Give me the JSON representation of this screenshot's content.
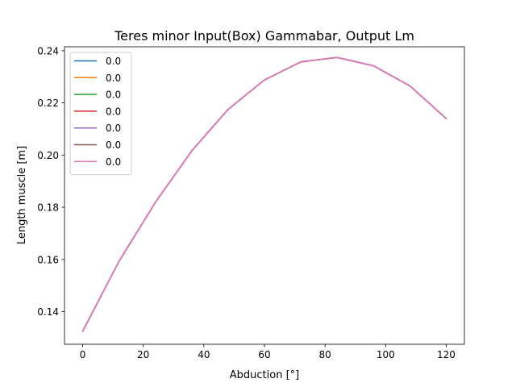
{
  "chart_data": {
    "type": "line",
    "title": "Teres minor Input(Box) Gammabar, Output Lm",
    "xlabel": "Abduction [°]",
    "ylabel": "Length muscle [m]",
    "xlim": [
      -6,
      126
    ],
    "ylim": [
      0.1275,
      0.2415
    ],
    "xticks": [
      0,
      20,
      40,
      60,
      80,
      100,
      120
    ],
    "yticks": [
      0.14,
      0.16,
      0.18,
      0.2,
      0.22,
      0.24
    ],
    "xtick_labels": [
      "0",
      "20",
      "40",
      "60",
      "80",
      "100",
      "120"
    ],
    "ytick_labels": [
      "0.14",
      "0.16",
      "0.18",
      "0.20",
      "0.22",
      "0.24"
    ],
    "grid": false,
    "legend_position": "upper-left",
    "x": [
      0,
      12,
      24,
      36,
      48,
      60,
      72,
      84,
      96,
      108,
      120
    ],
    "series": [
      {
        "name": "0.0",
        "color": "#1f77b4",
        "values": [
          0.1325,
          0.1593,
          0.1819,
          0.2016,
          0.2175,
          0.2288,
          0.2357,
          0.2374,
          0.2342,
          0.2265,
          0.214
        ]
      },
      {
        "name": "0.0",
        "color": "#ff7f0e",
        "values": [
          0.1325,
          0.1593,
          0.1819,
          0.2016,
          0.2175,
          0.2288,
          0.2357,
          0.2374,
          0.2342,
          0.2265,
          0.214
        ]
      },
      {
        "name": "0.0",
        "color": "#2ca02c",
        "values": [
          0.1325,
          0.1593,
          0.1819,
          0.2016,
          0.2175,
          0.2288,
          0.2357,
          0.2374,
          0.2342,
          0.2265,
          0.214
        ]
      },
      {
        "name": "0.0",
        "color": "#d62728",
        "values": [
          0.1325,
          0.1593,
          0.1819,
          0.2016,
          0.2175,
          0.2288,
          0.2357,
          0.2374,
          0.2342,
          0.2265,
          0.214
        ]
      },
      {
        "name": "0.0",
        "color": "#9467bd",
        "values": [
          0.1325,
          0.1593,
          0.1819,
          0.2016,
          0.2175,
          0.2288,
          0.2357,
          0.2374,
          0.2342,
          0.2265,
          0.214
        ]
      },
      {
        "name": "0.0",
        "color": "#8c564b",
        "values": [
          0.1325,
          0.1593,
          0.1819,
          0.2016,
          0.2175,
          0.2288,
          0.2357,
          0.2374,
          0.2342,
          0.2265,
          0.214
        ]
      },
      {
        "name": "0.0",
        "color": "#e377c2",
        "values": [
          0.1325,
          0.1593,
          0.1819,
          0.2016,
          0.2175,
          0.2288,
          0.2357,
          0.2374,
          0.2342,
          0.2265,
          0.214
        ]
      }
    ]
  }
}
